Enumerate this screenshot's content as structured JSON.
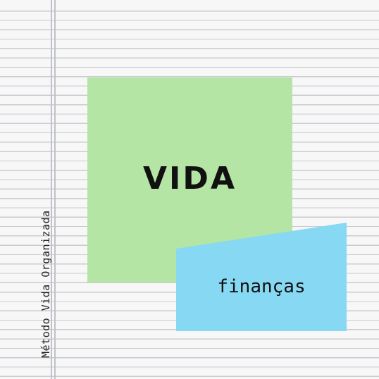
{
  "title": "VIDA",
  "subtitle": "finanças",
  "side_label": "Método Vida Organizada",
  "colors": {
    "paper": "#f7f7f8",
    "rule_lines": "#c9cbd0",
    "green_card": "#b4e5a4",
    "blue_card": "#86d8f3",
    "text": "#111111"
  }
}
